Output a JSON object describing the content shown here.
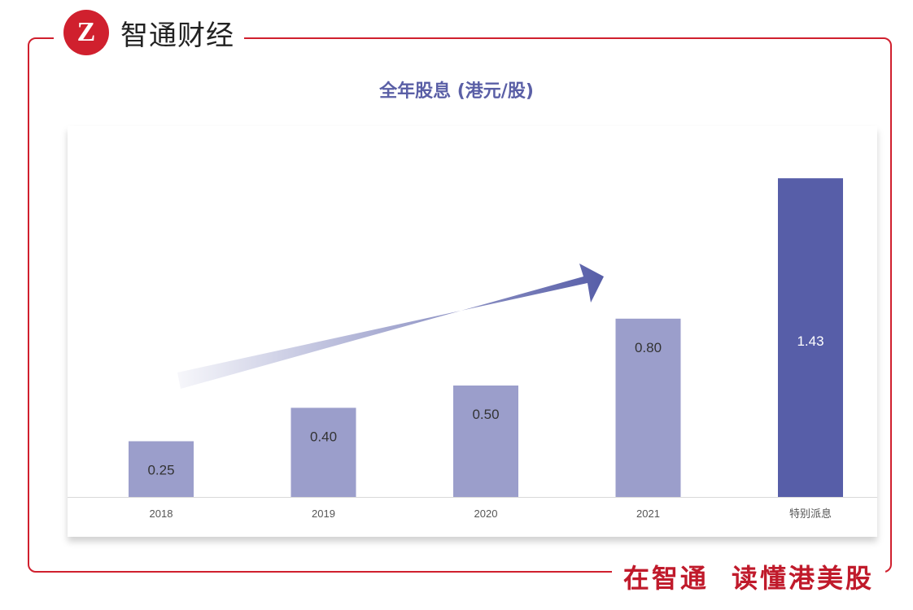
{
  "brand": {
    "logo_mark": "Z",
    "name": "智通财经"
  },
  "slogan": "在智通 读懂港美股",
  "colors": {
    "frame": "#d0202e",
    "bar": "#9b9ecb",
    "bar_highlight": "#575ea8",
    "title": "#5a5fa6"
  },
  "chart_data": {
    "type": "bar",
    "title": "全年股息 (港元/股)",
    "categories": [
      "2018",
      "2019",
      "2020",
      "2021",
      "特别派息"
    ],
    "values": [
      0.25,
      0.4,
      0.5,
      0.8,
      1.43
    ],
    "labels": [
      "0.25",
      "0.40",
      "0.50",
      "0.80",
      "1.43"
    ],
    "highlight": "特别派息",
    "ylim": [
      0,
      1.5
    ],
    "grid": false,
    "annotation": "upward-trend-arrow"
  }
}
